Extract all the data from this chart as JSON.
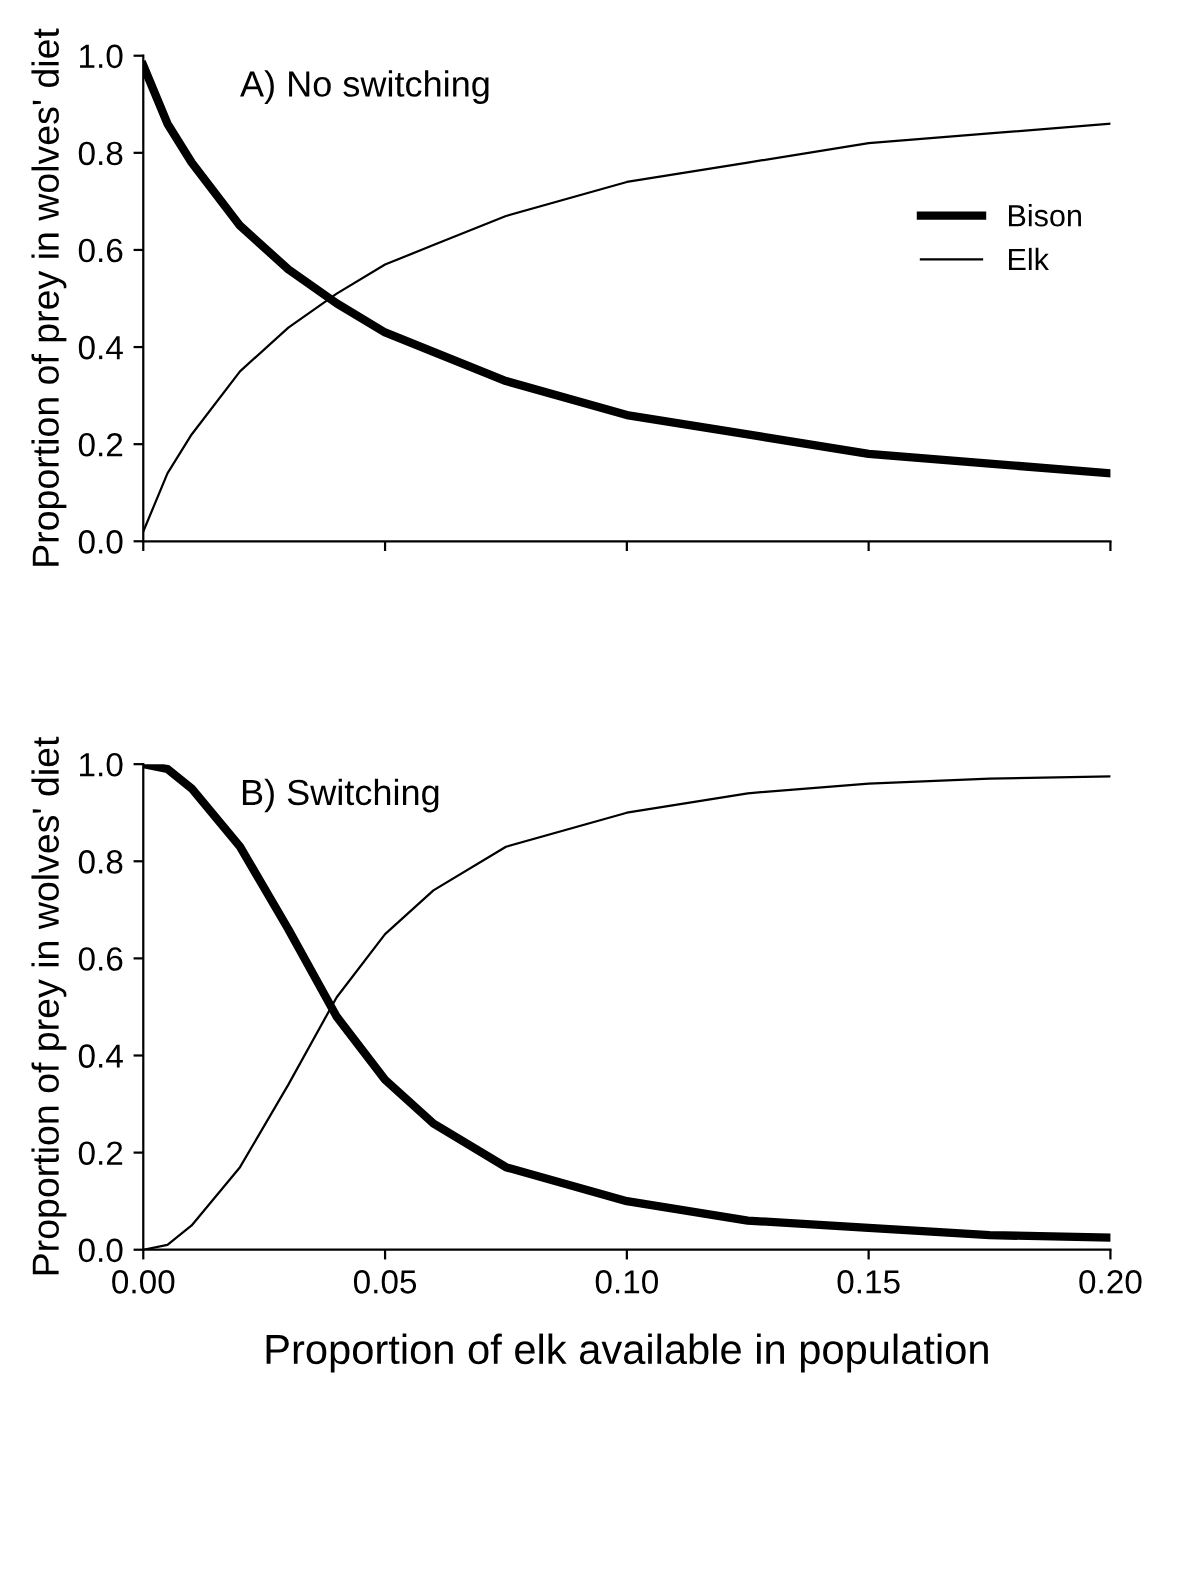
{
  "chart_data": [
    {
      "type": "line",
      "ylabel": "Proportion of prey in wolves' diet",
      "annotations": [
        "A) No switching"
      ],
      "x": [
        0,
        0.005,
        0.01,
        0.02,
        0.03,
        0.04,
        0.05,
        0.06,
        0.075,
        0.1,
        0.125,
        0.15,
        0.175,
        0.2
      ],
      "series": [
        {
          "name": "Bison",
          "color": "#000000",
          "values": [
            0.98,
            0.86,
            0.78,
            0.65,
            0.56,
            0.49,
            0.43,
            0.39,
            0.33,
            0.26,
            0.22,
            0.18,
            0.16,
            0.14
          ]
        },
        {
          "name": "Elk",
          "color": "#000000",
          "values": [
            0.02,
            0.14,
            0.22,
            0.35,
            0.44,
            0.51,
            0.57,
            0.61,
            0.67,
            0.74,
            0.78,
            0.82,
            0.84,
            0.86
          ]
        }
      ],
      "xlim": [
        0,
        0.2
      ],
      "ylim": [
        0,
        1
      ],
      "xticks": [
        {
          "value": 0,
          "label": null
        },
        {
          "value": 0.05,
          "label": null
        },
        {
          "value": 0.1,
          "label": null
        },
        {
          "value": 0.15,
          "label": null
        },
        {
          "value": 0.2,
          "label": null
        }
      ],
      "yticks": [
        {
          "value": 0,
          "label": "0.0"
        },
        {
          "value": 0.2,
          "label": "0.2"
        },
        {
          "value": 0.4,
          "label": "0.4"
        },
        {
          "value": 0.6,
          "label": "0.6"
        },
        {
          "value": 0.8,
          "label": "0.8"
        },
        {
          "value": 1,
          "label": "1.0"
        }
      ],
      "tick_labels": "y",
      "legend": "right",
      "grid": false
    },
    {
      "type": "line",
      "ylabel": "Proportion of prey in wolves' diet",
      "xlabel": "Proportion of elk available in population",
      "annotations": [
        "B) Switching"
      ],
      "x": [
        0,
        0.005,
        0.01,
        0.02,
        0.03,
        0.04,
        0.05,
        0.06,
        0.075,
        0.1,
        0.125,
        0.15,
        0.175,
        0.2
      ],
      "series": [
        {
          "color": "#000000",
          "values": [
            1.0,
            0.99,
            0.95,
            0.83,
            0.66,
            0.48,
            0.35,
            0.26,
            0.17,
            0.1,
            0.06,
            0.045,
            0.03,
            0.025
          ]
        },
        {
          "color": "#000000",
          "values": [
            0.0,
            0.01,
            0.05,
            0.17,
            0.34,
            0.52,
            0.65,
            0.74,
            0.83,
            0.9,
            0.94,
            0.96,
            0.97,
            0.975
          ]
        }
      ],
      "xlim": [
        0,
        0.2
      ],
      "ylim": [
        0,
        1
      ],
      "xticks": [
        {
          "value": 0,
          "label": "0.00"
        },
        {
          "value": 0.05,
          "label": "0.05"
        },
        {
          "value": 0.1,
          "label": "0.10"
        },
        {
          "value": 0.15,
          "label": "0.15"
        },
        {
          "value": 0.2,
          "label": "0.20"
        }
      ],
      "yticks": [
        {
          "value": 0,
          "label": "0.0"
        },
        {
          "value": 0.2,
          "label": "0.2"
        },
        {
          "value": 0.4,
          "label": "0.4"
        },
        {
          "value": 0.6,
          "label": "0.6"
        },
        {
          "value": 0.8,
          "label": "0.8"
        },
        {
          "value": 1,
          "label": "1.0"
        }
      ],
      "grid": false
    }
  ]
}
